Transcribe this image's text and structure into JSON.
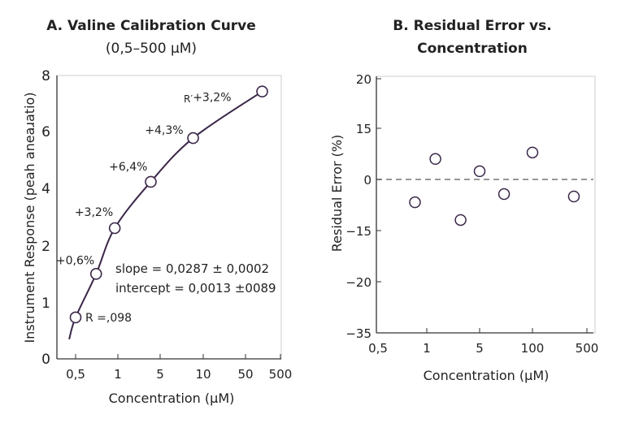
{
  "colors": {
    "curve": "#3a2748",
    "axis": "#333333",
    "frame": "#cccccc",
    "zero_line": "#777777"
  },
  "chart_data": [
    {
      "type": "line",
      "title": "A. Valine Calibration Curve",
      "subtitle": "(0,5–500 µM)",
      "xlabel": "Concentration (µM)",
      "ylabel": "Instrument Response (peah aneaɹatio)",
      "xscale": "log",
      "x_ticks": [
        {
          "label": "0,5",
          "value": 0.5
        },
        {
          "label": "1",
          "value": 1
        },
        {
          "label": "5",
          "value": 5
        },
        {
          "label": "10",
          "value": 10
        },
        {
          "label": "50",
          "value": 50
        },
        {
          "label": "500",
          "value": 500
        }
      ],
      "y_ticks": [
        {
          "label": "0",
          "value": 0
        },
        {
          "label": "1",
          "value": 1
        },
        {
          "label": "2",
          "value": 2
        },
        {
          "label": "4",
          "value": 4
        },
        {
          "label": "6",
          "value": 6
        },
        {
          "label": "8",
          "value": 8
        }
      ],
      "ylim": [
        0,
        8
      ],
      "points": [
        {
          "x": 0.5,
          "y": 0.74,
          "label": "R =,098"
        },
        {
          "x": 0.7,
          "y": 1.51,
          "label": "+0,6%"
        },
        {
          "x": 0.95,
          "y": 2.62,
          "label": "+3,2%"
        },
        {
          "x": 3.5,
          "y": 4.23,
          "label": "+6,4%"
        },
        {
          "x": 8.5,
          "y": 5.77,
          "label": "+4,3%"
        },
        {
          "x": 150,
          "y": 7.43,
          "label": "+3,2%"
        }
      ],
      "curve_extent": {
        "x_start": 0.45,
        "y_start": 0.35
      },
      "extra_label": "R′",
      "annotations": [
        "slope = 0,0287 ± 0,0002",
        "intercept = 0,0013 ±0089"
      ]
    },
    {
      "type": "scatter",
      "title": "B. Residual Error vs.",
      "subtitle": "Concentration",
      "xlabel": "Concentration (µM)",
      "ylabel": "Residual Error (%)",
      "xscale": "log",
      "x_ticks": [
        {
          "label": "0,5",
          "value": 0.5
        },
        {
          "label": "1",
          "value": 1
        },
        {
          "label": "5",
          "value": 5
        },
        {
          "label": "100",
          "value": 100
        },
        {
          "label": "500",
          "value": 500
        }
      ],
      "y_ticks": [
        {
          "label": "−35",
          "value": -35
        },
        {
          "label": "−20",
          "value": -20
        },
        {
          "label": "−15",
          "value": -15
        },
        {
          "label": "0",
          "value": 0
        },
        {
          "label": "15",
          "value": 15
        },
        {
          "label": "20",
          "value": 20
        }
      ],
      "ylim": [
        -35,
        20
      ],
      "reference_line": 0,
      "points": [
        {
          "x": 0.85,
          "y": -6.7
        },
        {
          "x": 1.3,
          "y": 6.0
        },
        {
          "x": 2.8,
          "y": -11.9
        },
        {
          "x": 5,
          "y": 2.4
        },
        {
          "x": 20,
          "y": -4.3
        },
        {
          "x": 100,
          "y": 7.9
        },
        {
          "x": 340,
          "y": -5.0
        }
      ]
    }
  ]
}
